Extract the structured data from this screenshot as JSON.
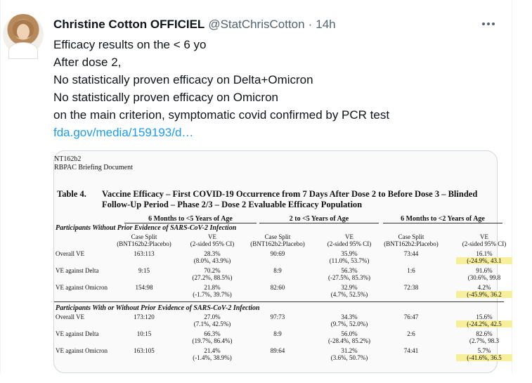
{
  "author": {
    "display_name": "Christine Cotton OFFICIEL",
    "handle": "@StatChrisCotton",
    "separator": "·",
    "time": "14h"
  },
  "tweet": {
    "lines": [
      "Efficacy results on the < 6 yo",
      "After dose 2,",
      "No statistically proven efficacy on Delta+Omicron",
      "No statistically proven efficacy on Omicron",
      "on the main criterion, symptomatic covid confirmed by PCR test"
    ],
    "link_text": "fda.gov/media/159193/d…"
  },
  "icons": {
    "more": "more-horizontal-icon"
  },
  "colors": {
    "link": "#1d9bf0",
    "muted": "#536471",
    "highlight": "#f7ef9c"
  },
  "document": {
    "header_line1": "NT162b2",
    "header_line2": "RBPAC Briefing Document",
    "table_label": "Table 4.",
    "table_title_line1": "Vaccine Efficacy – First COVID-19 Occurrence from 7 Days After Dose 2 to Before Dose 3 – Blinded",
    "table_title_line2": "Follow-Up Period – Phase 2/3 – Dose 2 Evaluable Efficacy Population",
    "group_headers": [
      "6 Months to <5 Years of Age",
      "2 to <5 Years of Age",
      "6 Months to <2 Years of Age"
    ],
    "col_case_split": "Case Split",
    "col_case_split_sub": "(BNT162b2:Placebo)",
    "col_ve": "VE",
    "col_ve_sub": "(2-sided 95% CI)",
    "section1": "Participants Without Prior Evidence of SARS-CoV-2 Infection",
    "section2": "Participants With or Without Prior Evidence of SARS-CoV-2 Infection",
    "rows_s1": [
      {
        "label": "Overall VE",
        "cs1": "163:113",
        "ve1": "28.3%",
        "ci1": "(8.0%, 43.9%)",
        "cs2": "90:69",
        "ve2": "35.9%",
        "ci2": "(11.0%, 53.7%)",
        "cs3": "73:44",
        "ve3": "16.1%",
        "ci3": "(-24.9%, 43.1"
      },
      {
        "label": "VE against Delta",
        "cs1": "9:15",
        "ve1": "70.2%",
        "ci1": "(27.2%, 88.5%)",
        "cs2": "8:9",
        "ve2": "56.3%",
        "ci2": "(-27.5%, 85.3%)",
        "cs3": "1:6",
        "ve3": "91.6%",
        "ci3": "(30.6%, 99.8"
      },
      {
        "label": "VE against Omicron",
        "cs1": "154:98",
        "ve1": "21.8%",
        "ci1": "(-1.7%, 39.7%)",
        "cs2": "82:60",
        "ve2": "32.9%",
        "ci2": "(4.7%, 52.5%)",
        "cs3": "72:38",
        "ve3": "4.2%",
        "ci3": "(-45.9%, 36.2"
      }
    ],
    "rows_s2": [
      {
        "label": "Overall VE",
        "cs1": "173:120",
        "ve1": "27.0%",
        "ci1": "(7.1%, 42.5%)",
        "cs2": "97:73",
        "ve2": "34.3%",
        "ci2": "(9.7%, 52.0%)",
        "cs3": "76:47",
        "ve3": "15.6%",
        "ci3": "(-24.2%, 42.5"
      },
      {
        "label": "VE against Delta",
        "cs1": "10:15",
        "ve1": "66.3%",
        "ci1": "(19.7%, 86.4%)",
        "cs2": "8:9",
        "ve2": "56.0%",
        "ci2": "(-28.4%, 85.2%)",
        "cs3": "2:6",
        "ve3": "82.6%",
        "ci3": "(2.7%, 98.3"
      },
      {
        "label": "VE against Omicron",
        "cs1": "163:105",
        "ve1": "21.4%",
        "ci1": "(-1.4%, 38.9%)",
        "cs2": "89:64",
        "ve2": "31.2%",
        "ci2": "(3.6%, 50.7%)",
        "cs3": "74:41",
        "ve3": "5.7%",
        "ci3": "(-41.6%, 36.5"
      }
    ]
  }
}
